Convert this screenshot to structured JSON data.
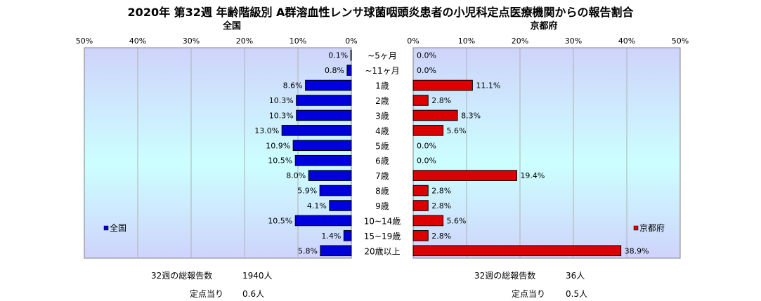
{
  "title": "2020年 第32週 年齢階級別 A群溶血性レンサ球菌咽頭炎患者の小児科定点医療機関からの報告割合",
  "colors": {
    "national": "#0000dd",
    "kyoto": "#dd0000",
    "bg_top": "#cfd3fb",
    "bg_mid": "#ccffff"
  },
  "chart_data": [
    {
      "type": "bar",
      "orientation": "horizontal",
      "title": "全国",
      "direction": "right-to-left",
      "xlim": [
        0,
        50
      ],
      "ticks": [
        "50%",
        "40%",
        "30%",
        "20%",
        "10%",
        "0%"
      ],
      "categories": [
        "~5ヶ月",
        "~11ヶ月",
        "1歳",
        "2歳",
        "3歳",
        "4歳",
        "5歳",
        "6歳",
        "7歳",
        "8歳",
        "9歳",
        "10~14歳",
        "15~19歳",
        "20歳以上"
      ],
      "series": [
        {
          "name": "全国",
          "values": [
            0.1,
            0.8,
            8.6,
            10.3,
            10.3,
            13.0,
            10.9,
            10.5,
            8.0,
            5.9,
            4.1,
            10.5,
            1.4,
            5.8
          ]
        }
      ],
      "data_labels": [
        "0.1%",
        "0.8%",
        "8.6%",
        "10.3%",
        "10.3%",
        "13.0%",
        "10.9%",
        "10.5%",
        "8.0%",
        "5.9%",
        "4.1%",
        "10.5%",
        "1.4%",
        "5.8%"
      ],
      "legend": "bottom-left",
      "grid": true
    },
    {
      "type": "bar",
      "orientation": "horizontal",
      "title": "京都府",
      "direction": "left-to-right",
      "xlim": [
        0,
        50
      ],
      "ticks": [
        "0%",
        "10%",
        "20%",
        "30%",
        "40%",
        "50%"
      ],
      "categories": [
        "~5ヶ月",
        "~11ヶ月",
        "1歳",
        "2歳",
        "3歳",
        "4歳",
        "5歳",
        "6歳",
        "7歳",
        "8歳",
        "9歳",
        "10~14歳",
        "15~19歳",
        "20歳以上"
      ],
      "series": [
        {
          "name": "京都府",
          "values": [
            0.0,
            0.0,
            11.1,
            2.8,
            8.3,
            5.6,
            0.0,
            0.0,
            19.4,
            2.8,
            2.8,
            5.6,
            2.8,
            38.9
          ]
        }
      ],
      "data_labels": [
        "0.0%",
        "0.0%",
        "11.1%",
        "2.8%",
        "8.3%",
        "5.6%",
        "0.0%",
        "0.0%",
        "19.4%",
        "2.8%",
        "2.8%",
        "5.6%",
        "2.8%",
        "38.9%"
      ],
      "legend": "bottom-right",
      "grid": true
    }
  ],
  "footer": {
    "national_total_label": "32週の総報告数",
    "national_total_value": "1940人",
    "national_per_label": "定点当り",
    "national_per_value": "0.6人",
    "kyoto_total_label": "32週の総報告数",
    "kyoto_total_value": "36人",
    "kyoto_per_label": "定点当り",
    "kyoto_per_value": "0.5人"
  }
}
